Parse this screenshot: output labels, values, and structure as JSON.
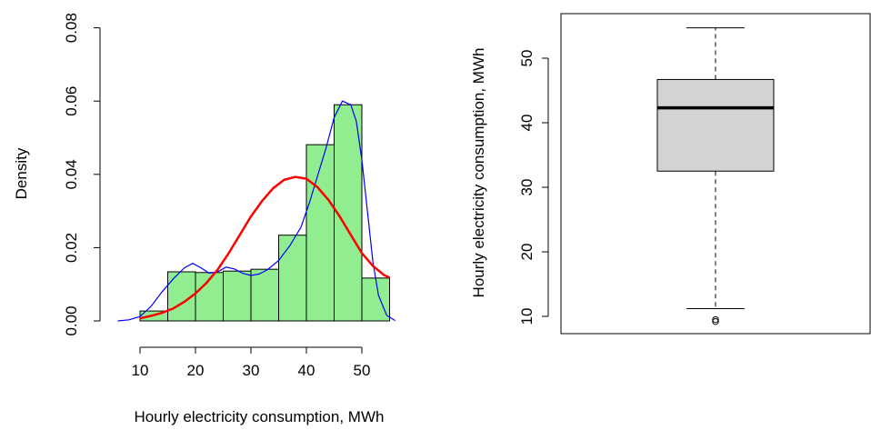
{
  "colors": {
    "hist_fill": "#90ee90",
    "kde_line": "#0000ff",
    "normal_curve": "#ff0000",
    "box_fill": "#d3d3d3",
    "axis": "#000000"
  },
  "chart_data": [
    {
      "type": "histogram",
      "xlabel": "Hourly electricity consumption, MWh",
      "ylabel": "Density",
      "xlim": [
        5,
        57
      ],
      "ylim": [
        0,
        0.08
      ],
      "x_ticks": [
        10,
        20,
        30,
        40,
        50
      ],
      "y_ticks": [
        "0.00",
        "0.02",
        "0.04",
        "0.06",
        "0.08"
      ],
      "bins": [
        {
          "from": 10,
          "to": 15,
          "density": 0.0027
        },
        {
          "from": 15,
          "to": 20,
          "density": 0.0134
        },
        {
          "from": 20,
          "to": 25,
          "density": 0.0132
        },
        {
          "from": 25,
          "to": 30,
          "density": 0.0136
        },
        {
          "from": 30,
          "to": 35,
          "density": 0.0141
        },
        {
          "from": 35,
          "to": 40,
          "density": 0.0234
        },
        {
          "from": 40,
          "to": 45,
          "density": 0.0481
        },
        {
          "from": 45,
          "to": 50,
          "density": 0.059
        },
        {
          "from": 50,
          "to": 55,
          "density": 0.0117
        }
      ],
      "kde_curve": [
        [
          6,
          0.0
        ],
        [
          8,
          0.0003
        ],
        [
          10,
          0.0012
        ],
        [
          12,
          0.004
        ],
        [
          14,
          0.008
        ],
        [
          16,
          0.0115
        ],
        [
          18,
          0.0145
        ],
        [
          19.5,
          0.0157
        ],
        [
          21,
          0.0145
        ],
        [
          22.5,
          0.013
        ],
        [
          24,
          0.0134
        ],
        [
          25.5,
          0.0147
        ],
        [
          27,
          0.0142
        ],
        [
          28.5,
          0.013
        ],
        [
          30,
          0.0124
        ],
        [
          31.5,
          0.0128
        ],
        [
          33,
          0.014
        ],
        [
          35,
          0.0165
        ],
        [
          37,
          0.0205
        ],
        [
          39,
          0.0255
        ],
        [
          40.5,
          0.032
        ],
        [
          42,
          0.0395
        ],
        [
          43.5,
          0.047
        ],
        [
          45,
          0.0555
        ],
        [
          46.5,
          0.06
        ],
        [
          48,
          0.059
        ],
        [
          49,
          0.0545
        ],
        [
          50,
          0.044
        ],
        [
          51,
          0.03
        ],
        [
          52,
          0.016
        ],
        [
          53,
          0.007
        ],
        [
          54.5,
          0.0015
        ],
        [
          56,
          0.0001
        ]
      ],
      "normal_curve": [
        [
          10,
          0.0007
        ],
        [
          12,
          0.0014
        ],
        [
          14,
          0.0022
        ],
        [
          16,
          0.0034
        ],
        [
          18,
          0.0052
        ],
        [
          20,
          0.0075
        ],
        [
          22,
          0.0104
        ],
        [
          24,
          0.014
        ],
        [
          26,
          0.0185
        ],
        [
          28,
          0.0235
        ],
        [
          30,
          0.0285
        ],
        [
          32,
          0.0327
        ],
        [
          34,
          0.0362
        ],
        [
          36,
          0.0385
        ],
        [
          38,
          0.0393
        ],
        [
          40,
          0.0388
        ],
        [
          42,
          0.0365
        ],
        [
          44,
          0.033
        ],
        [
          46,
          0.0285
        ],
        [
          48,
          0.0235
        ],
        [
          50,
          0.0185
        ],
        [
          52,
          0.015
        ],
        [
          54,
          0.0125
        ],
        [
          55,
          0.0118
        ]
      ]
    },
    {
      "type": "boxplot",
      "ylabel": "Hourly electricity consumption, MWh",
      "ylim": [
        8,
        57
      ],
      "y_ticks": [
        10,
        20,
        30,
        40,
        50
      ],
      "whisker_low": 11.2,
      "q1": 32.5,
      "median": 42.3,
      "q3": 46.7,
      "whisker_high": 54.7,
      "outliers": [
        9.2,
        9.5
      ]
    }
  ]
}
